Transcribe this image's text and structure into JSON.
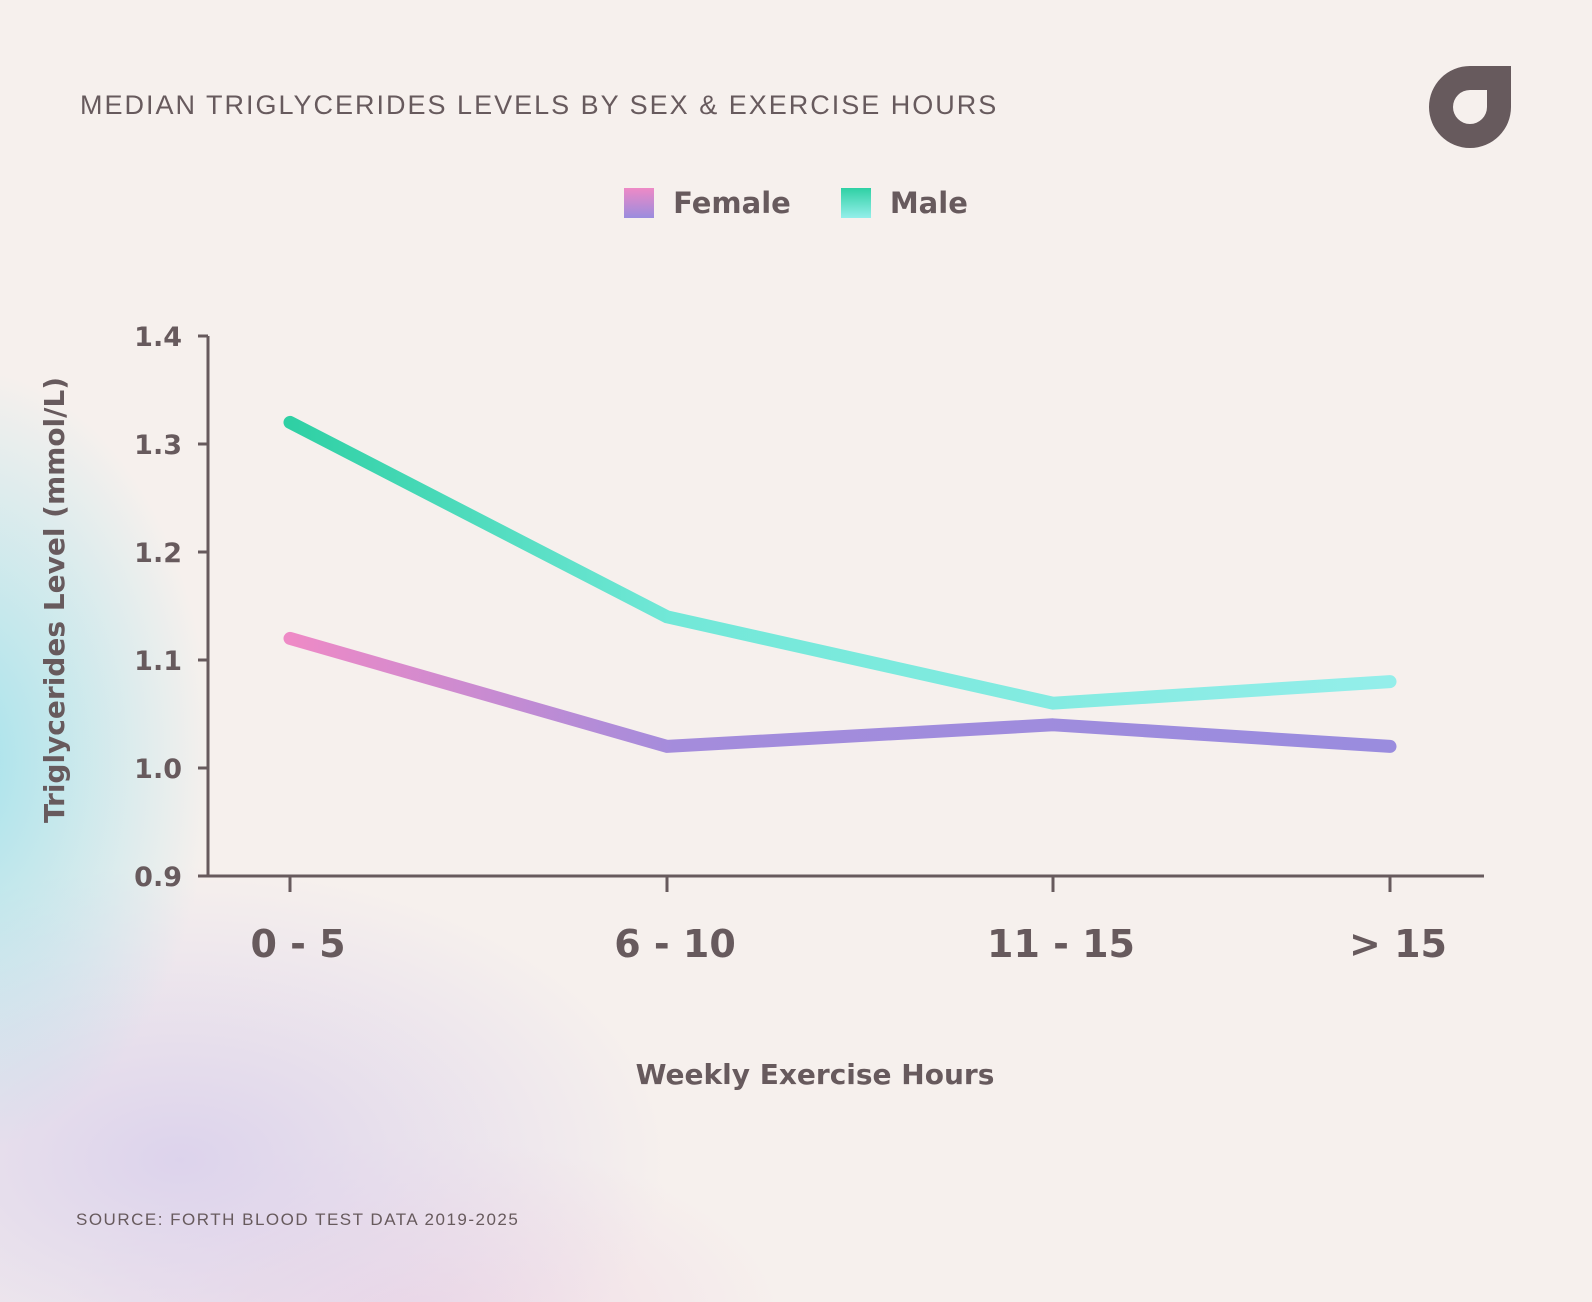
{
  "chart_data": {
    "type": "line",
    "title": "MEDIAN TRIGLYCERIDES LEVELS BY SEX & EXERCISE HOURS",
    "xlabel": "Weekly Exercise Hours",
    "ylabel": "Triglycerides Level (mmol/L)",
    "categories": [
      "0 - 5",
      "6 - 10",
      "11 - 15",
      "> 15"
    ],
    "ylim": [
      0.9,
      1.4
    ],
    "yticks": [
      "0.9",
      "1.0",
      "1.1",
      "1.2",
      "1.3",
      "1.4"
    ],
    "grid": false,
    "legend_position": "top-center",
    "series": [
      {
        "name": "Female",
        "values": [
          1.12,
          1.02,
          1.04,
          1.02
        ],
        "color_start": "#ee8ac6",
        "color_end": "#9a8cde"
      },
      {
        "name": "Male",
        "values": [
          1.32,
          1.14,
          1.06,
          1.08
        ],
        "color_start": "#2fd0a4",
        "color_end": "#94eeea"
      }
    ],
    "source": "SOURCE: FORTH BLOOD TEST DATA 2019-2025"
  },
  "colors": {
    "text": "#675a5d",
    "axis": "#675a5d",
    "background": "#f6f0ed"
  },
  "logo": {
    "icon": "brand-logo-icon",
    "color": "#675a5d"
  }
}
